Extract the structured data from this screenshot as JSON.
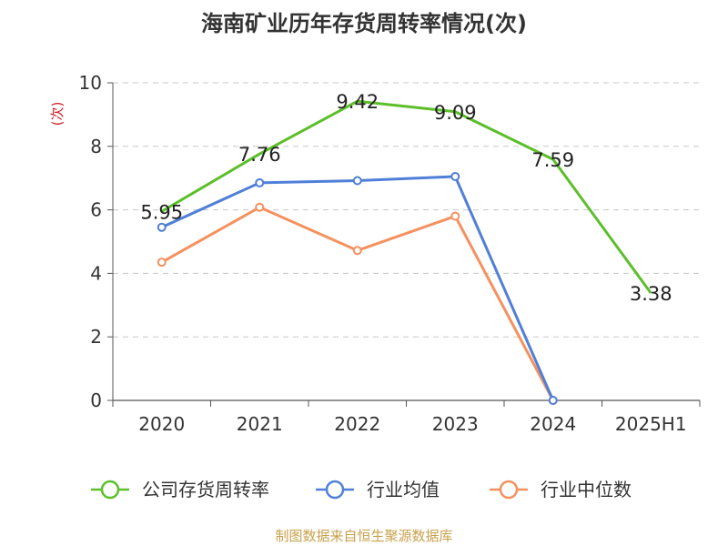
{
  "chart_data": {
    "type": "line",
    "title": "海南矿业历年存货周转率情况(次)",
    "ylabel": "(次)",
    "categories": [
      "2020",
      "2021",
      "2022",
      "2023",
      "2024",
      "2025H1"
    ],
    "ylim": [
      0,
      10
    ],
    "yticks": [
      "0",
      "2",
      "4",
      "6",
      "8",
      "10"
    ],
    "grid": true,
    "legend_position": "bottom",
    "series": [
      {
        "name": "公司存货周转率",
        "color": "#5cbf2a",
        "values": [
          5.95,
          7.76,
          9.42,
          9.09,
          7.59,
          3.38
        ],
        "labels": [
          "5.95",
          "7.76",
          "9.42",
          "9.09",
          "7.59",
          "3.38"
        ]
      },
      {
        "name": "行业均值",
        "color": "#4f7fd8",
        "values": [
          5.45,
          6.85,
          6.92,
          7.05,
          0,
          null
        ]
      },
      {
        "name": "行业中位数",
        "color": "#f5915e",
        "values": [
          4.35,
          6.08,
          4.72,
          5.8,
          0,
          null
        ]
      }
    ]
  },
  "source": "制图数据来自恒生聚源数据库"
}
